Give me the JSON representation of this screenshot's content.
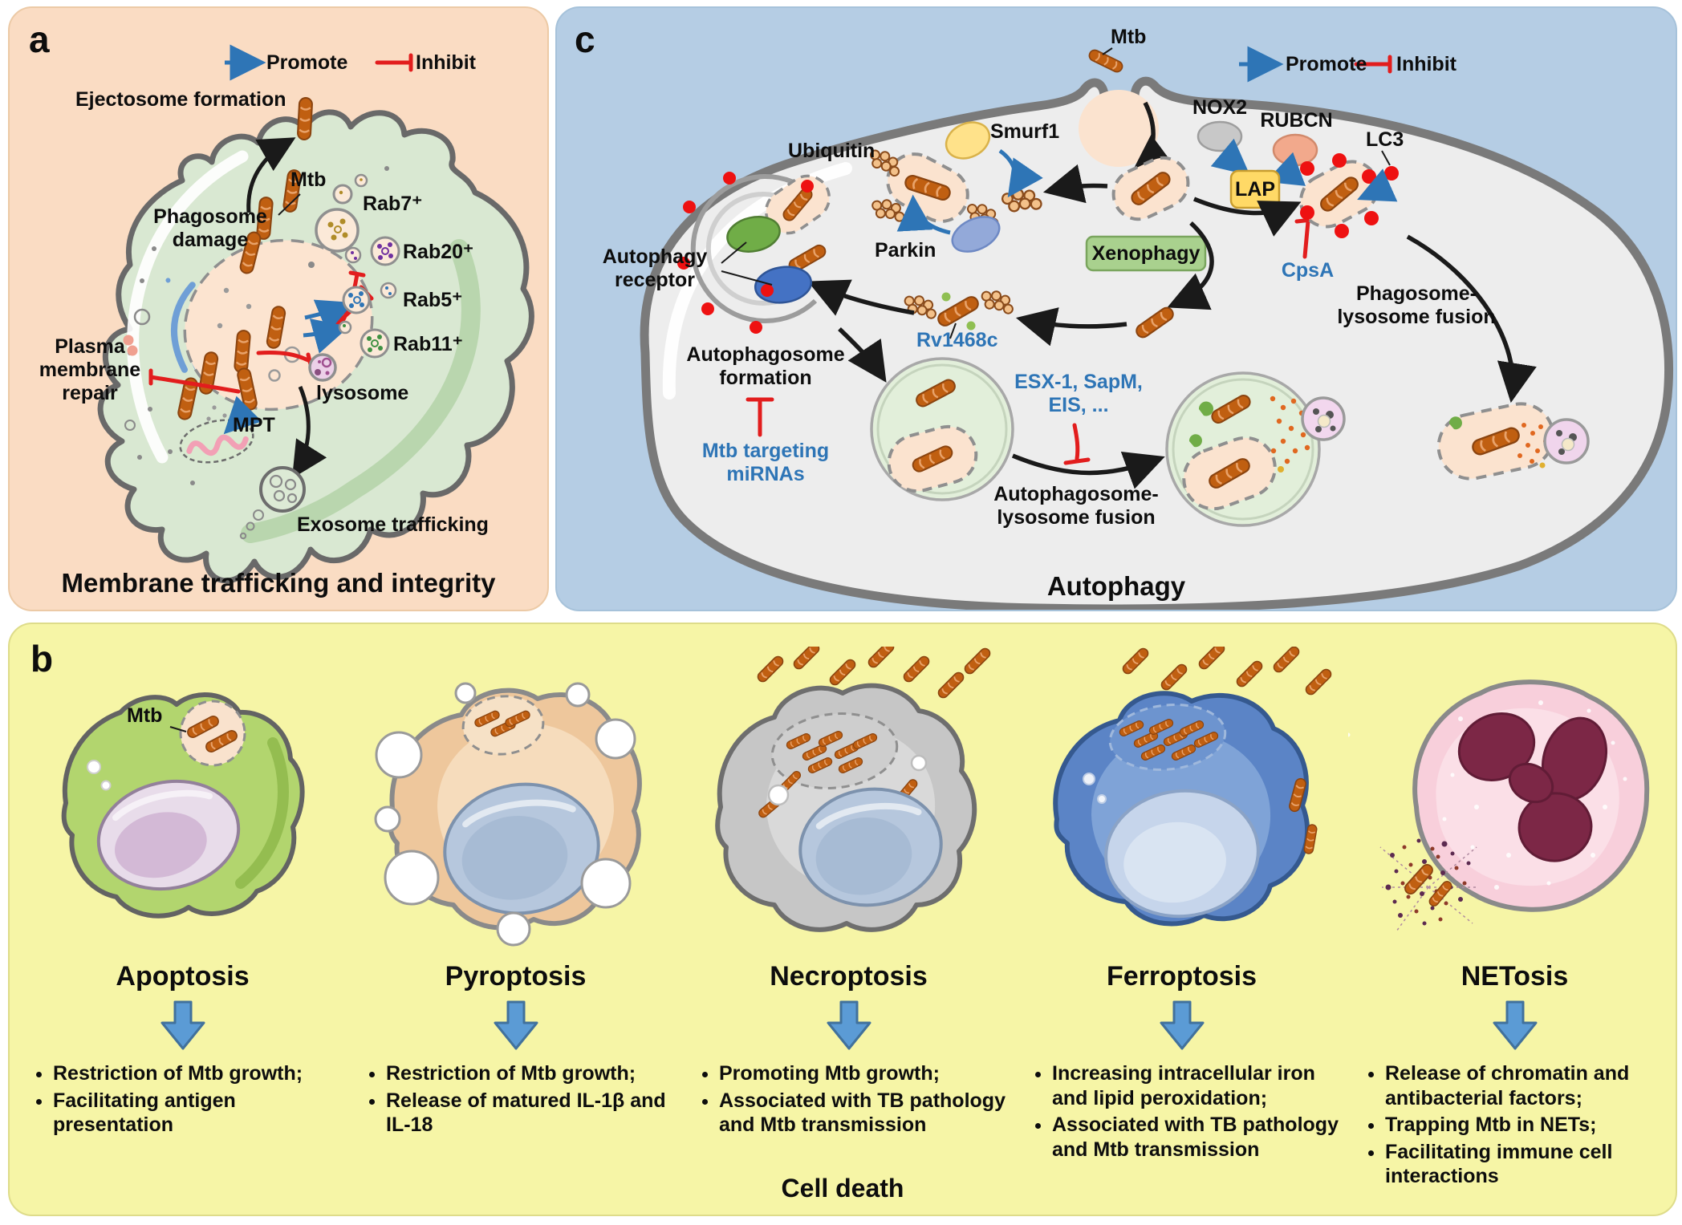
{
  "panel_a": {
    "panel_label": "a",
    "legend": {
      "promote": "Promote",
      "inhibit": "Inhibit"
    },
    "labels": {
      "ejectosome_formation": "Ejectosome formation",
      "mtb": "Mtb",
      "phagosome_damage_line1": "Phagosome",
      "phagosome_damage_line2": "damage",
      "rab7": "Rab7⁺",
      "rab20": "Rab20⁺",
      "rab5": "Rab5⁺",
      "rab11": "Rab11⁺",
      "lysosome": "lysosome",
      "plasma_line1": "Plasma",
      "plasma_line2": "membrane",
      "plasma_line3": "repair",
      "mpt": "MPT",
      "exosome_trafficking": "Exosome trafficking"
    },
    "title": "Membrane trafficking and integrity"
  },
  "panel_c": {
    "panel_label": "c",
    "legend": {
      "promote": "Promote",
      "inhibit": "Inhibit"
    },
    "labels": {
      "mtb": "Mtb",
      "smurf1": "Smurf1",
      "ubiquitin": "Ubiquitin",
      "parkin": "Parkin",
      "xenophagy": "Xenophagy",
      "nox2": "NOX2",
      "rubcn": "RUBCN",
      "lap": "LAP",
      "lc3": "LC3",
      "cpsa": "CpsA",
      "rv1468c": "Rv1468c",
      "autophagy_receptor_line1": "Autophagy",
      "autophagy_receptor_line2": "receptor",
      "autophagosome_formation_line1": "Autophagosome",
      "autophagosome_formation_line2": "formation",
      "mirnas_line1": "Mtb targeting",
      "mirnas_line2": "miRNAs",
      "esx_line1": "ESX-1, SapM,",
      "esx_line2": "EIS, ...",
      "autophagosome_lysosome_line1": "Autophagosome-",
      "autophagosome_lysosome_line2": "lysosome fusion",
      "phagosome_lysosome_line1": "Phagosome-",
      "phagosome_lysosome_line2": "lysosome fusion"
    },
    "title": "Autophagy"
  },
  "panel_b": {
    "panel_label": "b",
    "mtb_label": "Mtb",
    "cells": [
      {
        "title": "Apoptosis",
        "bullets": [
          "Restriction of Mtb growth;",
          "Facilitating antigen presentation"
        ]
      },
      {
        "title": "Pyroptosis",
        "bullets": [
          "Restriction of Mtb growth;",
          "Release of matured IL-1β and IL-18"
        ]
      },
      {
        "title": "Necroptosis",
        "bullets": [
          "Promoting Mtb growth;",
          "Associated with TB pathology and Mtb transmission"
        ]
      },
      {
        "title": "Ferroptosis",
        "bullets": [
          "Increasing intracellular iron and lipid peroxidation;",
          "Associated with TB pathology and Mtb transmission"
        ]
      },
      {
        "title": "NETosis",
        "bullets": [
          "Release of chromatin and antibacterial factors;",
          "Trapping Mtb in NETs;",
          "Facilitating immune cell interactions"
        ]
      }
    ],
    "title": "Cell death"
  },
  "colors": {
    "promote_blue": "#2e75b6",
    "inhibit_red": "#e21d1d",
    "mtb_orange": "#c05f11",
    "panel_a_bg": "#fadcc3",
    "panel_c_bg": "#b5cde4",
    "panel_b_bg": "#f6f5a6"
  }
}
